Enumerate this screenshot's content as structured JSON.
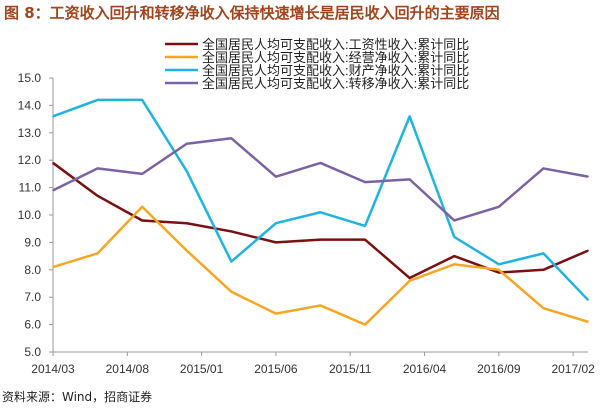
{
  "title": "图 8：工资收入回升和转移净收入保持快速增长是居民收入回升的主要原因",
  "source": "资料来源：Wind，招商证券",
  "chart_data": {
    "type": "line",
    "title": "图 8：工资收入回升和转移净收入保持快速增长是居民收入回升的主要原因",
    "xlabel": "",
    "ylabel": "",
    "ylim": [
      5.0,
      15.0
    ],
    "yticks": [
      "5.0",
      "6.0",
      "7.0",
      "8.0",
      "9.0",
      "10.0",
      "11.0",
      "12.0",
      "13.0",
      "14.0",
      "15.0"
    ],
    "x": [
      "2014/03",
      "2014/06",
      "2014/09",
      "2014/12",
      "2015/03",
      "2015/06",
      "2015/09",
      "2015/12",
      "2016/03",
      "2016/06",
      "2016/09",
      "2016/12",
      "2017/03"
    ],
    "xticks": [
      "2014/03",
      "2014/08",
      "2015/01",
      "2015/06",
      "2015/11",
      "2016/04",
      "2016/09",
      "2017/02"
    ],
    "legend_position": "top-right",
    "series": [
      {
        "name": "全国居民人均可支配收入:工资性收入:累计同比",
        "color": "#7b1010",
        "values": [
          11.9,
          10.7,
          9.8,
          9.7,
          9.4,
          9.0,
          9.1,
          9.1,
          7.7,
          8.5,
          7.9,
          8.0,
          8.7
        ]
      },
      {
        "name": "全国居民人均可支配收入:经营净收入:累计同比",
        "color": "#f5a623",
        "values": [
          8.1,
          8.6,
          10.3,
          8.7,
          7.2,
          6.4,
          6.7,
          6.0,
          7.6,
          8.2,
          8.0,
          6.6,
          6.1
        ]
      },
      {
        "name": "全国居民人均可支配收入:财产净收入:累计同比",
        "color": "#1fb4e0",
        "values": [
          13.6,
          14.2,
          14.2,
          11.6,
          8.3,
          9.7,
          10.1,
          9.6,
          13.6,
          9.2,
          8.2,
          8.6,
          6.9
        ]
      },
      {
        "name": "全国居民人均可支配收入:转移净收入:累计同比",
        "color": "#7b63a3",
        "values": [
          10.9,
          11.7,
          11.5,
          12.6,
          12.8,
          11.4,
          11.9,
          11.2,
          11.3,
          9.8,
          10.3,
          11.7,
          11.4
        ]
      }
    ]
  }
}
